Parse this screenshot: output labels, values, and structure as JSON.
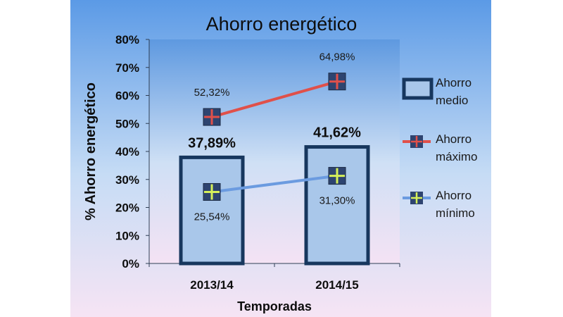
{
  "chart_data": {
    "type": "bar",
    "title": "Ahorro energético",
    "xlabel": "Temporadas",
    "ylabel": "% Ahorro energético",
    "ylim": [
      0,
      80
    ],
    "y_ticks": [
      "0%",
      "10%",
      "20%",
      "30%",
      "40%",
      "50%",
      "60%",
      "70%",
      "80%"
    ],
    "categories": [
      "2013/14",
      "2014/15"
    ],
    "series": [
      {
        "name": "Ahorro medio",
        "kind": "bar",
        "values": [
          37.89,
          41.62
        ],
        "labels": [
          "37,89%",
          "41,62%"
        ],
        "legend_lines": [
          "Ahorro",
          "medio"
        ],
        "color": "#a9c7ea",
        "stroke": "#17375e"
      },
      {
        "name": "Ahorro máximo",
        "kind": "line",
        "values": [
          52.32,
          64.98
        ],
        "labels": [
          "52,32%",
          "64,98%"
        ],
        "legend_lines": [
          "Ahorro",
          "máximo"
        ],
        "color": "#e0504a",
        "marker_fill": "#2e4470"
      },
      {
        "name": "Ahorro mínimo",
        "kind": "line",
        "values": [
          25.54,
          31.3
        ],
        "labels": [
          "25,54%",
          "31,30%"
        ],
        "legend_lines": [
          "Ahorro",
          "mínimo"
        ],
        "color": "#6b9be0",
        "marker_fill": "#2e4470",
        "marker_cross": "#d6f05a"
      }
    ],
    "grid": false,
    "legend_position": "right",
    "colors": {
      "background_top": "#5b9ae6",
      "background_bottom": "#f6e4f4",
      "plot_top": "#5e99e0",
      "plot_bottom": "#f4e2f4"
    }
  }
}
